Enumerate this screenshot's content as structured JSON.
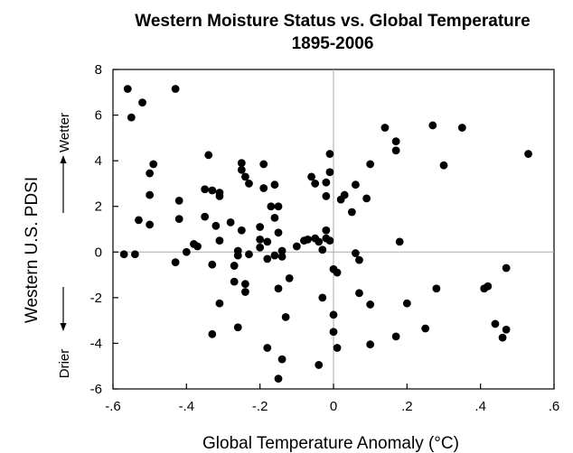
{
  "chart_data": {
    "type": "scatter",
    "title": "Western Moisture Status vs. Global Temperature",
    "subtitle": "1895-2006",
    "xlabel": "Global Temperature Anomaly (°C)",
    "ylabel": "Western U.S. PDSI",
    "xlim": [
      -0.6,
      0.6
    ],
    "ylim": [
      -6,
      8
    ],
    "x_ticks": [
      -0.6,
      -0.4,
      -0.2,
      0,
      0.2,
      0.4,
      0.6
    ],
    "x_tick_labels": [
      "-.6",
      "-.4",
      "-.2",
      "0",
      ".2",
      ".4",
      ".6"
    ],
    "y_ticks": [
      -6,
      -4,
      -2,
      0,
      2,
      4,
      6,
      8
    ],
    "y_tick_labels": [
      "-6",
      "-4",
      "-2",
      "0",
      "2",
      "4",
      "6",
      "8"
    ],
    "annotations": {
      "upper": "Wetter",
      "lower": "Drier"
    },
    "reference_lines": {
      "x": 0,
      "y": 0
    },
    "grid": false,
    "marker_color": "#000000",
    "points": [
      {
        "x": -0.56,
        "y": 7.15
      },
      {
        "x": -0.55,
        "y": 5.9
      },
      {
        "x": -0.52,
        "y": 6.55
      },
      {
        "x": -0.43,
        "y": 7.15
      },
      {
        "x": -0.49,
        "y": 3.85
      },
      {
        "x": -0.5,
        "y": 3.45
      },
      {
        "x": -0.5,
        "y": 2.5
      },
      {
        "x": -0.5,
        "y": 1.2
      },
      {
        "x": -0.53,
        "y": 1.4
      },
      {
        "x": -0.57,
        "y": -0.1
      },
      {
        "x": -0.54,
        "y": -0.1
      },
      {
        "x": -0.42,
        "y": 2.25
      },
      {
        "x": -0.42,
        "y": 1.45
      },
      {
        "x": -0.4,
        "y": 0.0
      },
      {
        "x": -0.43,
        "y": -0.45
      },
      {
        "x": -0.38,
        "y": 0.35
      },
      {
        "x": -0.37,
        "y": 0.25
      },
      {
        "x": -0.35,
        "y": 1.55
      },
      {
        "x": -0.34,
        "y": 4.25
      },
      {
        "x": -0.35,
        "y": 2.75
      },
      {
        "x": -0.33,
        "y": 2.7
      },
      {
        "x": -0.31,
        "y": 2.6
      },
      {
        "x": -0.31,
        "y": 2.45
      },
      {
        "x": -0.31,
        "y": 0.5
      },
      {
        "x": -0.32,
        "y": 1.15
      },
      {
        "x": -0.33,
        "y": -0.55
      },
      {
        "x": -0.33,
        "y": -3.6
      },
      {
        "x": -0.31,
        "y": -2.25
      },
      {
        "x": -0.28,
        "y": 1.3
      },
      {
        "x": -0.27,
        "y": -0.6
      },
      {
        "x": -0.27,
        "y": -1.3
      },
      {
        "x": -0.26,
        "y": -3.3
      },
      {
        "x": -0.26,
        "y": 0.05
      },
      {
        "x": -0.26,
        "y": -0.15
      },
      {
        "x": -0.25,
        "y": 3.9
      },
      {
        "x": -0.25,
        "y": 3.6
      },
      {
        "x": -0.24,
        "y": 3.3
      },
      {
        "x": -0.23,
        "y": 3.0
      },
      {
        "x": -0.25,
        "y": 0.95
      },
      {
        "x": -0.24,
        "y": -1.4
      },
      {
        "x": -0.24,
        "y": -1.75
      },
      {
        "x": -0.23,
        "y": -0.1
      },
      {
        "x": -0.2,
        "y": 1.1
      },
      {
        "x": -0.2,
        "y": 0.55
      },
      {
        "x": -0.2,
        "y": 0.2
      },
      {
        "x": -0.19,
        "y": 3.85
      },
      {
        "x": -0.19,
        "y": 2.8
      },
      {
        "x": -0.17,
        "y": 2.0
      },
      {
        "x": -0.16,
        "y": 2.95
      },
      {
        "x": -0.16,
        "y": 1.5
      },
      {
        "x": -0.15,
        "y": 2.0
      },
      {
        "x": -0.18,
        "y": 0.45
      },
      {
        "x": -0.18,
        "y": -0.3
      },
      {
        "x": -0.16,
        "y": -0.15
      },
      {
        "x": -0.15,
        "y": 0.85
      },
      {
        "x": -0.14,
        "y": -0.2
      },
      {
        "x": -0.14,
        "y": 0.05
      },
      {
        "x": -0.15,
        "y": -1.6
      },
      {
        "x": -0.13,
        "y": -2.85
      },
      {
        "x": -0.18,
        "y": -4.2
      },
      {
        "x": -0.14,
        "y": -4.7
      },
      {
        "x": -0.15,
        "y": -5.55
      },
      {
        "x": -0.12,
        "y": -1.15
      },
      {
        "x": -0.1,
        "y": 0.25
      },
      {
        "x": -0.08,
        "y": 0.5
      },
      {
        "x": -0.07,
        "y": 0.55
      },
      {
        "x": -0.06,
        "y": 3.3
      },
      {
        "x": -0.05,
        "y": 3.0
      },
      {
        "x": -0.05,
        "y": 0.6
      },
      {
        "x": -0.04,
        "y": 0.45
      },
      {
        "x": -0.03,
        "y": 0.1
      },
      {
        "x": -0.02,
        "y": 0.95
      },
      {
        "x": -0.02,
        "y": 0.6
      },
      {
        "x": -0.02,
        "y": 3.05
      },
      {
        "x": -0.01,
        "y": 3.5
      },
      {
        "x": -0.02,
        "y": 2.45
      },
      {
        "x": -0.01,
        "y": 4.3
      },
      {
        "x": -0.01,
        "y": 0.5
      },
      {
        "x": 0.0,
        "y": -0.75
      },
      {
        "x": 0.01,
        "y": -0.9
      },
      {
        "x": -0.03,
        "y": -2.0
      },
      {
        "x": 0.0,
        "y": -2.75
      },
      {
        "x": 0.0,
        "y": -3.5
      },
      {
        "x": 0.01,
        "y": -4.2
      },
      {
        "x": -0.04,
        "y": -4.95
      },
      {
        "x": 0.02,
        "y": 2.3
      },
      {
        "x": 0.03,
        "y": 2.5
      },
      {
        "x": 0.05,
        "y": 1.75
      },
      {
        "x": 0.06,
        "y": 2.95
      },
      {
        "x": 0.06,
        "y": -0.05
      },
      {
        "x": 0.07,
        "y": -0.35
      },
      {
        "x": 0.07,
        "y": -1.8
      },
      {
        "x": 0.09,
        "y": 2.35
      },
      {
        "x": 0.1,
        "y": 3.85
      },
      {
        "x": 0.1,
        "y": -2.3
      },
      {
        "x": 0.1,
        "y": -4.05
      },
      {
        "x": 0.14,
        "y": 5.45
      },
      {
        "x": 0.17,
        "y": 4.85
      },
      {
        "x": 0.17,
        "y": 4.45
      },
      {
        "x": 0.18,
        "y": 0.45
      },
      {
        "x": 0.17,
        "y": -3.7
      },
      {
        "x": 0.2,
        "y": -2.25
      },
      {
        "x": 0.25,
        "y": -3.35
      },
      {
        "x": 0.27,
        "y": 5.55
      },
      {
        "x": 0.28,
        "y": -1.6
      },
      {
        "x": 0.3,
        "y": 3.8
      },
      {
        "x": 0.35,
        "y": 5.45
      },
      {
        "x": 0.41,
        "y": -1.6
      },
      {
        "x": 0.42,
        "y": -1.5
      },
      {
        "x": 0.44,
        "y": -3.15
      },
      {
        "x": 0.46,
        "y": -3.75
      },
      {
        "x": 0.47,
        "y": -3.4
      },
      {
        "x": 0.47,
        "y": -0.7
      },
      {
        "x": 0.53,
        "y": 4.3
      }
    ]
  }
}
